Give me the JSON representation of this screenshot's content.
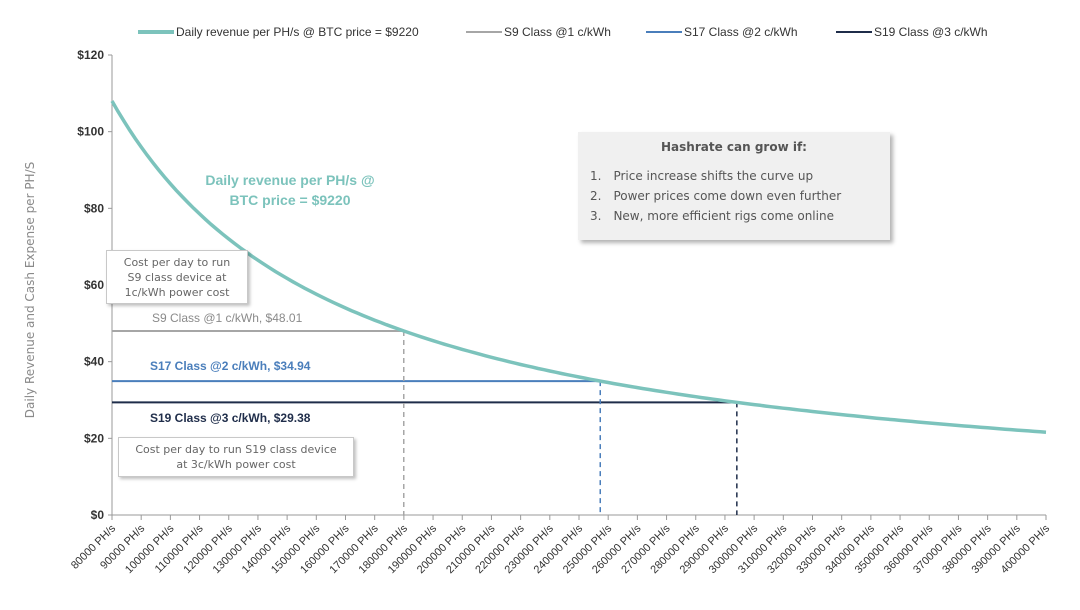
{
  "chart_data": {
    "type": "line",
    "ylabel": "Daily Revenue and Cash Expense per PH/S",
    "ylim": [
      0,
      120
    ],
    "yticks": [
      "$0",
      "$20",
      "$40",
      "$60",
      "$80",
      "$100",
      "$120"
    ],
    "ytick_values": [
      0,
      20,
      40,
      60,
      80,
      100,
      120
    ],
    "categories": [
      "80000 PH/s",
      "90000 PH/s",
      "100000 PH/s",
      "110000 PH/s",
      "120000 PH/s",
      "130000 PH/s",
      "140000 PH/s",
      "150000 PH/s",
      "160000 PH/s",
      "170000 PH/s",
      "180000 PH/s",
      "190000 PH/s",
      "200000 PH/s",
      "210000 PH/s",
      "220000 PH/s",
      "230000 PH/s",
      "240000 PH/s",
      "250000 PH/s",
      "260000 PH/s",
      "270000 PH/s",
      "280000 PH/s",
      "290000 PH/s",
      "300000 PH/s",
      "310000 PH/s",
      "320000 PH/s",
      "330000 PH/s",
      "340000 PH/s",
      "350000 PH/s",
      "360000 PH/s",
      "370000 PH/s",
      "380000 PH/s",
      "390000 PH/s",
      "400000 PH/s"
    ],
    "x": [
      80000,
      400000
    ],
    "legend": {
      "position": "top",
      "entries": [
        {
          "label": "Daily revenue per PH/s @ BTC price = $9220",
          "color": "#7cc3bc"
        },
        {
          "label": "S9 Class @1 c/kWh",
          "color": "#a6a6a6"
        },
        {
          "label": "S17 Class @2 c/kWh",
          "color": "#4a7ebb"
        },
        {
          "label": "S19 Class @3 c/kWh",
          "color": "#1f2d4a"
        }
      ]
    },
    "series": [
      {
        "name": "Daily revenue per PH/s @ BTC price = $9220",
        "color": "#7cc3bc",
        "revenue_constant": 8640000
      },
      {
        "name": "S9 Class @1 c/kWh",
        "value": 48.01,
        "color": "#a6a6a6"
      },
      {
        "name": "S17 Class @2 c/kWh",
        "value": 34.94,
        "color": "#4a7ebb"
      },
      {
        "name": "S19 Class @3 c/kWh",
        "value": 29.38,
        "color": "#1f2d4a"
      }
    ],
    "grid": false
  },
  "annotations": {
    "curve_label_line1": "Daily revenue per PH/s @",
    "curve_label_line2": "BTC price = $9220",
    "s9_line_label": "S9 Class @1 c/kWh, $48.01",
    "s17_line_label": "S17 Class @2 c/kWh, $34.94",
    "s19_line_label": "S19 Class @3 c/kWh, $29.38",
    "s9_note_line1": "Cost per day to run",
    "s9_note_line2": "S9 class device at",
    "s9_note_line3": "1c/kWh power cost",
    "s19_note_line1": "Cost per day to run S19 class device",
    "s19_note_line2": "at 3c/kWh power cost",
    "hash_title": "Hashrate can grow if:",
    "hash_items": [
      "1. Price increase shifts the curve up",
      "2. Power prices come down even further",
      "3. New, more efficient rigs come online"
    ]
  }
}
